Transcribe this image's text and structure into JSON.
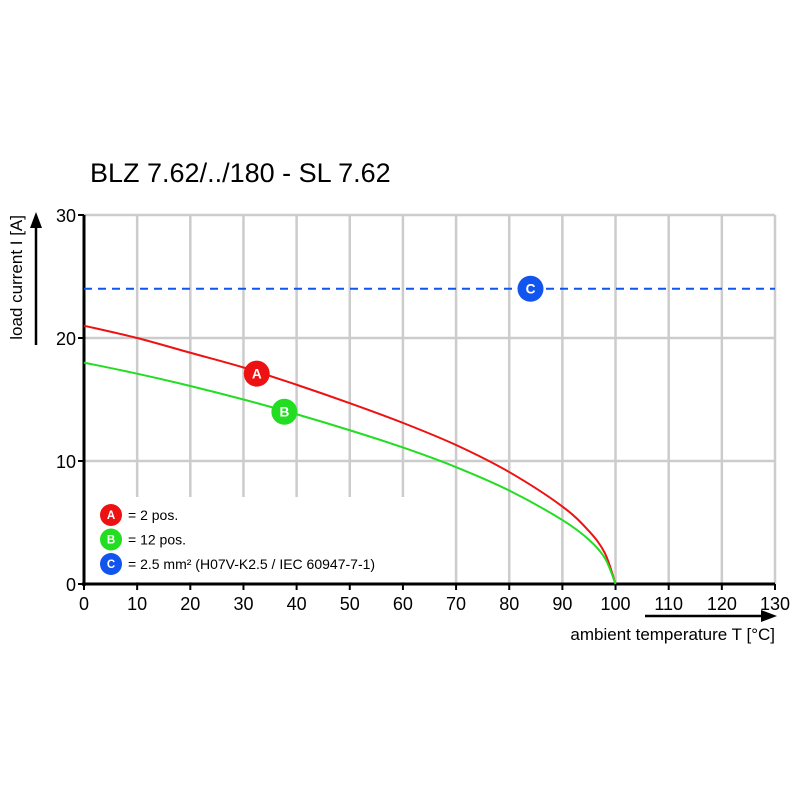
{
  "chart_data": {
    "type": "line",
    "title": "BLZ 7.62/../180 - SL 7.62",
    "xlabel": "ambient temperature T [°C]",
    "ylabel": "load current I [A]",
    "xlim": [
      0,
      130
    ],
    "ylim": [
      0,
      30
    ],
    "xticks": [
      0,
      10,
      20,
      30,
      40,
      50,
      60,
      70,
      80,
      90,
      100,
      110,
      120,
      130
    ],
    "yticks": [
      0,
      10,
      20,
      30
    ],
    "grid": true,
    "legend_placement": "bottom-left",
    "series": [
      {
        "marker": "A",
        "name": "= 2 pos.",
        "color": "#ee1111",
        "style": "solid",
        "x": [
          0,
          10,
          20,
          30,
          40,
          50,
          60,
          70,
          80,
          90,
          95,
          98,
          100
        ],
        "y": [
          21,
          20,
          18.8,
          17.6,
          16.2,
          14.7,
          13.1,
          11.3,
          9.1,
          6.3,
          4.3,
          2.5,
          0
        ],
        "label_at": [
          32.5,
          17.1
        ]
      },
      {
        "marker": "B",
        "name": "= 12 pos.",
        "color": "#22dd22",
        "style": "solid",
        "x": [
          0,
          10,
          20,
          30,
          40,
          50,
          60,
          70,
          80,
          90,
          95,
          98,
          100
        ],
        "y": [
          18,
          17.1,
          16.1,
          15,
          13.8,
          12.5,
          11.1,
          9.5,
          7.6,
          5.2,
          3.6,
          2.1,
          0
        ],
        "label_at": [
          37.7,
          14
        ]
      },
      {
        "marker": "C",
        "name": "= 2.5 mm² (H07V-K2.5 / IEC 60947-7-1)",
        "color": "#1155ee",
        "style": "dashed",
        "x": [
          0,
          130
        ],
        "y": [
          24,
          24
        ],
        "label_at": [
          84,
          24
        ]
      }
    ]
  }
}
